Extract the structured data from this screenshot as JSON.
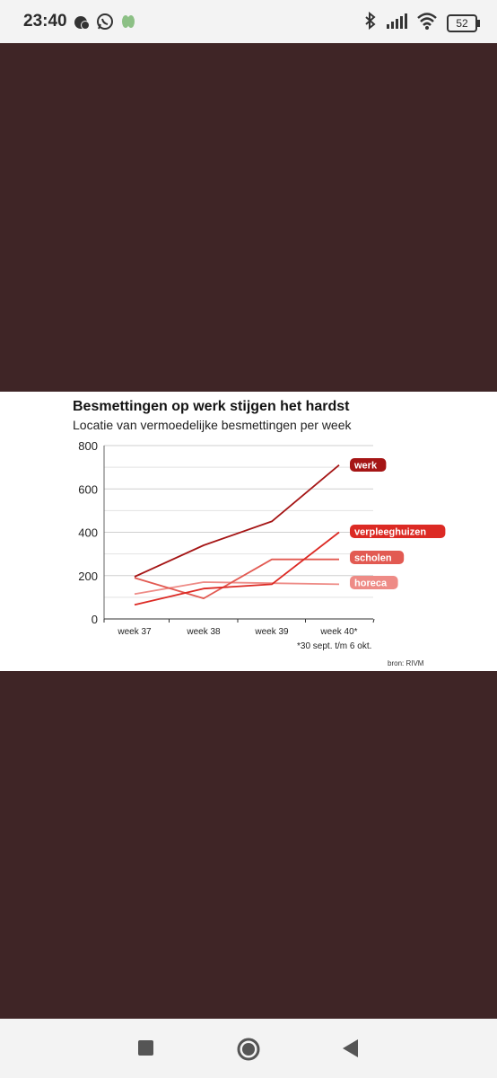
{
  "status_bar": {
    "time": "23:40",
    "left_icons": [
      "alarm-icon",
      "whatsapp-icon",
      "leaf-icon"
    ],
    "right_icons": [
      "bluetooth-icon",
      "signal-icon",
      "wifi-icon"
    ],
    "battery": "52"
  },
  "chart": {
    "title": "Besmettingen op werk stijgen het hardst",
    "subtitle": "Locatie van vermoedelijke besmettingen per week",
    "footnote": "*30 sept. t/m 6 okt.",
    "source": "bron: RIVM"
  },
  "chart_data": {
    "type": "line",
    "title": "Besmettingen op werk stijgen het hardst",
    "subtitle": "Locatie van vermoedelijke besmettingen per week",
    "categories": [
      "week 37",
      "week 38",
      "week 39",
      "week 40*"
    ],
    "ylim": [
      0,
      800
    ],
    "yticks": [
      0,
      200,
      400,
      600,
      800
    ],
    "grid": true,
    "legend": "labels at line ends (right)",
    "series": [
      {
        "name": "werk",
        "values": [
          195,
          340,
          450,
          710
        ],
        "color": "#a51515"
      },
      {
        "name": "verpleeghuizen",
        "values": [
          65,
          140,
          160,
          400
        ],
        "color": "#dc2a24"
      },
      {
        "name": "scholen",
        "values": [
          190,
          95,
          275,
          275
        ],
        "color": "#e25a52"
      },
      {
        "name": "horeca",
        "values": [
          115,
          170,
          165,
          160
        ],
        "color": "#ee8b86"
      }
    ]
  },
  "nav_bar": {
    "buttons": [
      "recents-square-icon",
      "home-circle-icon",
      "back-triangle-icon"
    ]
  }
}
